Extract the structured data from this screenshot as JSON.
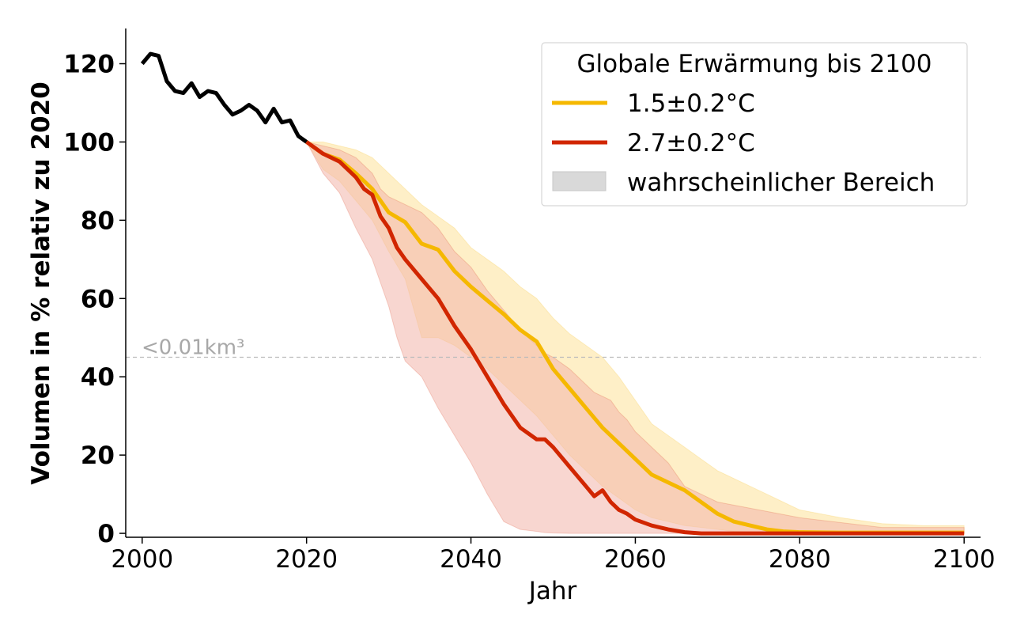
{
  "chart_data": {
    "type": "line",
    "xlabel": "Jahr",
    "ylabel": "Volumen in % relativ zu 2020",
    "xlim": [
      1998,
      2102
    ],
    "ylim": [
      -1,
      129
    ],
    "xticks": [
      2000,
      2020,
      2040,
      2060,
      2080,
      2100
    ],
    "yticks": [
      0,
      20,
      40,
      60,
      80,
      100,
      120
    ],
    "grid": false,
    "legend": {
      "title": "Globale Erwärmung bis 2100",
      "placement": "top-right",
      "range_label": "wahrscheinlicher Bereich"
    },
    "threshold": {
      "y": 45,
      "label": "<0.01km³",
      "color": "#bbbbbb"
    },
    "historical": {
      "color": "#000000",
      "x": [
        2000,
        2001,
        2002,
        2003,
        2004,
        2005,
        2006,
        2007,
        2008,
        2009,
        2010,
        2011,
        2012,
        2013,
        2014,
        2015,
        2016,
        2017,
        2018,
        2019,
        2020
      ],
      "y": [
        120,
        122.5,
        122,
        115.5,
        113,
        112.5,
        115,
        111.5,
        113,
        112.5,
        109.5,
        107,
        108,
        109.5,
        108,
        105,
        108.5,
        105,
        105.5,
        101.5,
        100
      ]
    },
    "series": [
      {
        "name": "1.5±0.2°C",
        "color": "#f5b800",
        "band_color": "#fde9b4",
        "x": [
          2020,
          2022,
          2024,
          2026,
          2028,
          2030,
          2032,
          2034,
          2036,
          2038,
          2040,
          2042,
          2044,
          2046,
          2048,
          2050,
          2052,
          2054,
          2056,
          2058,
          2060,
          2062,
          2064,
          2066,
          2068,
          2070,
          2072,
          2074,
          2076,
          2078,
          2080,
          2085,
          2090,
          2095,
          2100
        ],
        "y": [
          100,
          97,
          95.5,
          92,
          88,
          82,
          79.5,
          74,
          72.5,
          67,
          63,
          59.5,
          56,
          52,
          49,
          42,
          37,
          32,
          27,
          23,
          19,
          15,
          13,
          11,
          8,
          5,
          3,
          2,
          1,
          0.5,
          0.3,
          0.2,
          0.2,
          0.2,
          0.2
        ],
        "lower": [
          100,
          93,
          90,
          85,
          80,
          72,
          65,
          50,
          50,
          48,
          45,
          42,
          38,
          34,
          30,
          25,
          20,
          16,
          12,
          9,
          6,
          4,
          3,
          2,
          1.5,
          1,
          0.5,
          0.3,
          0.2,
          0.1,
          0.1,
          0,
          0,
          0,
          0
        ],
        "upper": [
          100,
          100,
          99,
          98,
          96,
          92,
          88,
          84,
          81,
          78,
          73,
          70,
          67,
          63,
          60,
          55,
          51,
          48,
          45,
          40,
          34,
          28,
          25,
          22,
          19,
          16,
          14,
          12,
          10,
          8,
          6,
          4,
          2.5,
          2,
          2
        ]
      },
      {
        "name": "2.7±0.2°C",
        "color": "#d12600",
        "band_color": "#f2b4aa",
        "x": [
          2020,
          2022,
          2024,
          2026,
          2027,
          2028,
          2029,
          2030,
          2031,
          2032,
          2034,
          2036,
          2038,
          2040,
          2042,
          2044,
          2046,
          2048,
          2049,
          2050,
          2052,
          2054,
          2055,
          2056,
          2057,
          2058,
          2059,
          2060,
          2062,
          2064,
          2066,
          2068,
          2070,
          2080,
          2090,
          2100
        ],
        "y": [
          100,
          97,
          95,
          91,
          88,
          86.5,
          81,
          78,
          73,
          70,
          65,
          60,
          53,
          47,
          40,
          33,
          27,
          24,
          24,
          22,
          17,
          12,
          9.5,
          11,
          8,
          6,
          5,
          3.5,
          2,
          1,
          0.3,
          0,
          0,
          0,
          0,
          0
        ],
        "lower": [
          100,
          92,
          87,
          78,
          74,
          70,
          64,
          58,
          50,
          44,
          40,
          32,
          25,
          18,
          10,
          3,
          1,
          0.5,
          0.2,
          0.1,
          0,
          0,
          0,
          0,
          0,
          0,
          0,
          0,
          0,
          0,
          0,
          0,
          0,
          0,
          0,
          0
        ],
        "upper": [
          100,
          99,
          98,
          96,
          94,
          92,
          88,
          86,
          85,
          84,
          82,
          78,
          72,
          68,
          62,
          57,
          52,
          48,
          46,
          45,
          42,
          38,
          36,
          35,
          34,
          31,
          29,
          26,
          22,
          18,
          12,
          10,
          8,
          4,
          1.5,
          1.5
        ]
      }
    ]
  }
}
